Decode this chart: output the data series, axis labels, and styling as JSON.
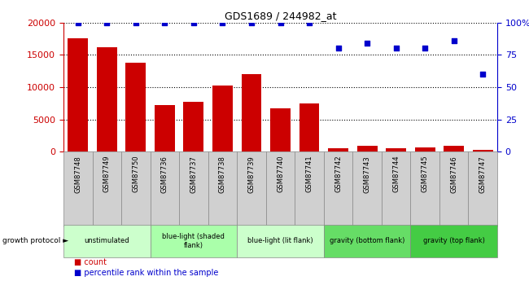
{
  "title": "GDS1689 / 244982_at",
  "samples": [
    "GSM87748",
    "GSM87749",
    "GSM87750",
    "GSM87736",
    "GSM87737",
    "GSM87738",
    "GSM87739",
    "GSM87740",
    "GSM87741",
    "GSM87742",
    "GSM87743",
    "GSM87744",
    "GSM87745",
    "GSM87746",
    "GSM87747"
  ],
  "counts": [
    17500,
    16200,
    13800,
    7200,
    7700,
    10200,
    12000,
    6700,
    7500,
    600,
    900,
    600,
    700,
    900,
    300
  ],
  "percentiles": [
    100,
    100,
    100,
    100,
    100,
    100,
    100,
    100,
    100,
    80,
    84,
    80,
    80,
    86,
    60
  ],
  "bar_color": "#cc0000",
  "dot_color": "#0000cc",
  "ylim_left": [
    0,
    20000
  ],
  "ylim_right": [
    0,
    100
  ],
  "yticks_left": [
    0,
    5000,
    10000,
    15000,
    20000
  ],
  "yticks_right": [
    0,
    25,
    50,
    75,
    100
  ],
  "yticklabels_left": [
    "0",
    "5000",
    "10000",
    "15000",
    "20000"
  ],
  "yticklabels_right": [
    "0",
    "25",
    "50",
    "75",
    "100%"
  ],
  "groups": [
    {
      "label": "unstimulated",
      "start": 0,
      "end": 3,
      "color": "#ccffcc"
    },
    {
      "label": "blue-light (shaded\nflank)",
      "start": 3,
      "end": 6,
      "color": "#aaffaa"
    },
    {
      "label": "blue-light (lit flank)",
      "start": 6,
      "end": 9,
      "color": "#ccffcc"
    },
    {
      "label": "gravity (bottom flank)",
      "start": 9,
      "end": 12,
      "color": "#66dd66"
    },
    {
      "label": "gravity (top flank)",
      "start": 12,
      "end": 15,
      "color": "#44cc44"
    }
  ],
  "legend_count_label": "count",
  "legend_pct_label": "percentile rank within the sample",
  "growth_protocol_label": "growth protocol",
  "left_axis_color": "#cc0000",
  "right_axis_color": "#0000cc",
  "gray_cell_color": "#d0d0d0",
  "cell_edge_color": "#888888"
}
